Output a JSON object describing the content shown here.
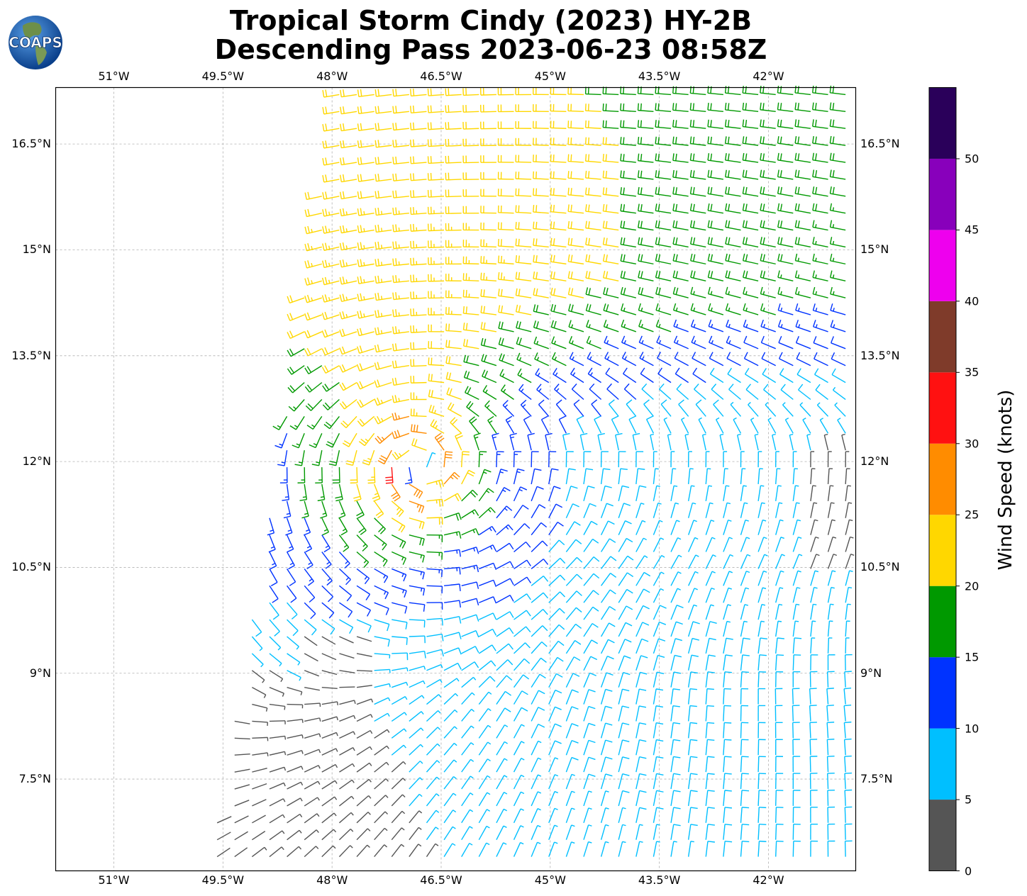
{
  "title_line1": "Tropical Storm Cindy (2023) HY-2B",
  "title_line2": "Descending Pass 2023-06-23 08:58Z",
  "logo_text": "COAPS",
  "map": {
    "lon_range": [
      -51.8,
      -40.8
    ],
    "lat_range": [
      6.2,
      17.3
    ],
    "lon_ticks": [
      "51°W",
      "49.5°W",
      "48°W",
      "46.5°W",
      "45°W",
      "43.5°W",
      "42°W"
    ],
    "lat_ticks": [
      "16.5°N",
      "15°N",
      "13.5°N",
      "12°N",
      "10.5°N",
      "9°N",
      "7.5°N"
    ],
    "storm_center": {
      "lon": -46.8,
      "lat": 11.95
    },
    "swath_western_edge": [
      [
        -47.9,
        17.3
      ],
      [
        -49.7,
        6.2
      ]
    ],
    "gridlines": true
  },
  "colorbar": {
    "title": "Wind Speed (knots)",
    "bounds": [
      0,
      5,
      10,
      15,
      20,
      25,
      30,
      35,
      40,
      45,
      50,
      55
    ],
    "colors": [
      "#555555",
      "#00bfff",
      "#0033ff",
      "#009900",
      "#ffd700",
      "#ff8c00",
      "#ff1111",
      "#7f3b2a",
      "#ee00ee",
      "#8800bb",
      "#2a005a"
    ],
    "tick_labels": [
      "0",
      "5",
      "10",
      "15",
      "20",
      "25",
      "30",
      "35",
      "40",
      "45",
      "50"
    ]
  }
}
